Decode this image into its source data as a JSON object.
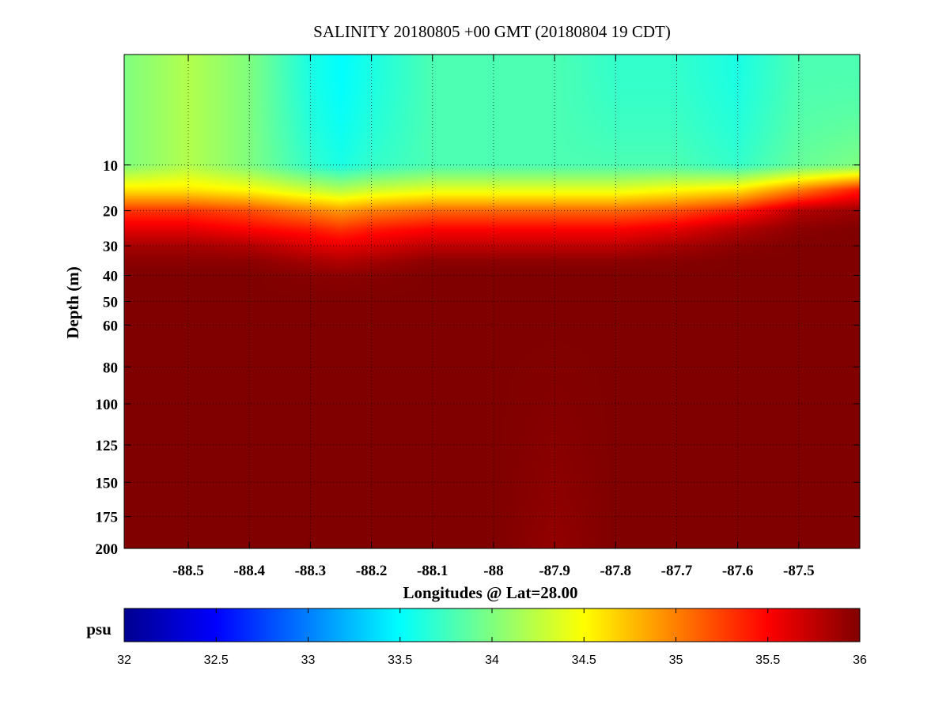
{
  "chart_data": {
    "type": "heatmap",
    "title": "SALINITY 20180805 +00 GMT (20180804 19 CDT)",
    "xlabel": "Longitudes @ Lat=28.00",
    "ylabel": "Depth (m)",
    "xlim": [
      -88.605,
      -87.4
    ],
    "ylim": [
      0,
      200
    ],
    "y_inverted": true,
    "y_scale": "sqrt",
    "grid": true,
    "x_ticks": [
      -88.5,
      -88.4,
      -88.3,
      -88.2,
      -88.1,
      -88,
      -87.9,
      -87.8,
      -87.7,
      -87.6,
      -87.5
    ],
    "x_tick_labels": [
      "-88.5",
      "-88.4",
      "-88.3",
      "-88.2",
      "-88.1",
      "-88",
      "-87.9",
      "-87.8",
      "-87.7",
      "-87.6",
      "-87.5"
    ],
    "y_ticks": [
      10,
      20,
      30,
      40,
      50,
      60,
      80,
      100,
      125,
      150,
      175,
      200
    ],
    "y_tick_labels": [
      "10",
      "20",
      "30",
      "40",
      "50",
      "60",
      "80",
      "100",
      "125",
      "150",
      "175",
      "200"
    ],
    "colorbar": {
      "label": "psu",
      "range": [
        32,
        36
      ],
      "ticks": [
        32,
        32.5,
        33,
        33.5,
        34,
        34.5,
        35,
        35.5,
        36
      ],
      "tick_labels": [
        "32",
        "32.5",
        "33",
        "33.5",
        "34",
        "34.5",
        "35",
        "35.5",
        "36"
      ],
      "colormap": "jet"
    },
    "x": [
      -88.605,
      -88.5,
      -88.4,
      -88.3,
      -88.25,
      -88.2,
      -88.1,
      -88.0,
      -87.9,
      -87.8,
      -87.7,
      -87.6,
      -87.5,
      -87.4
    ],
    "depth": [
      0,
      10,
      15,
      20,
      25,
      30,
      35,
      40,
      50,
      60,
      200
    ],
    "values": [
      [
        34.0,
        34.2,
        34.0,
        33.6,
        33.5,
        33.6,
        33.8,
        33.8,
        33.8,
        33.7,
        33.7,
        33.6,
        33.8,
        33.8
      ],
      [
        34.0,
        34.2,
        34.0,
        33.7,
        33.6,
        33.7,
        33.8,
        33.8,
        33.8,
        33.8,
        33.8,
        33.7,
        33.9,
        34.0
      ],
      [
        34.6,
        34.6,
        34.5,
        34.3,
        34.2,
        34.3,
        34.4,
        34.4,
        34.4,
        34.4,
        34.5,
        34.6,
        35.0,
        35.4
      ],
      [
        35.3,
        35.3,
        35.2,
        35.0,
        34.9,
        35.0,
        35.1,
        35.1,
        35.1,
        35.1,
        35.2,
        35.4,
        35.8,
        35.9
      ],
      [
        35.6,
        35.6,
        35.5,
        35.4,
        35.3,
        35.4,
        35.5,
        35.5,
        35.5,
        35.5,
        35.6,
        35.8,
        35.95,
        36.0
      ],
      [
        35.85,
        35.85,
        35.8,
        35.65,
        35.6,
        35.65,
        35.75,
        35.75,
        35.75,
        35.75,
        35.85,
        35.95,
        36.0,
        36.0
      ],
      [
        35.95,
        35.95,
        35.95,
        35.85,
        35.8,
        35.85,
        35.95,
        35.95,
        35.95,
        35.95,
        35.97,
        36.0,
        36.0,
        36.0
      ],
      [
        36.0,
        36.0,
        36.0,
        35.97,
        35.95,
        35.97,
        36.0,
        36.0,
        36.0,
        36.0,
        36.0,
        36.0,
        36.0,
        36.0
      ],
      [
        36.0,
        36.0,
        36.0,
        36.0,
        36.0,
        36.0,
        36.0,
        36.0,
        36.0,
        36.0,
        36.0,
        36.0,
        36.0,
        36.0
      ],
      [
        36.0,
        36.0,
        36.0,
        36.0,
        36.0,
        36.0,
        36.0,
        36.0,
        36.0,
        36.0,
        36.0,
        36.0,
        36.0,
        36.0
      ],
      [
        36.0,
        36.0,
        36.0,
        36.0,
        36.0,
        36.0,
        36.0,
        36.0,
        35.92,
        36.0,
        36.0,
        36.0,
        36.0,
        36.0
      ]
    ]
  }
}
